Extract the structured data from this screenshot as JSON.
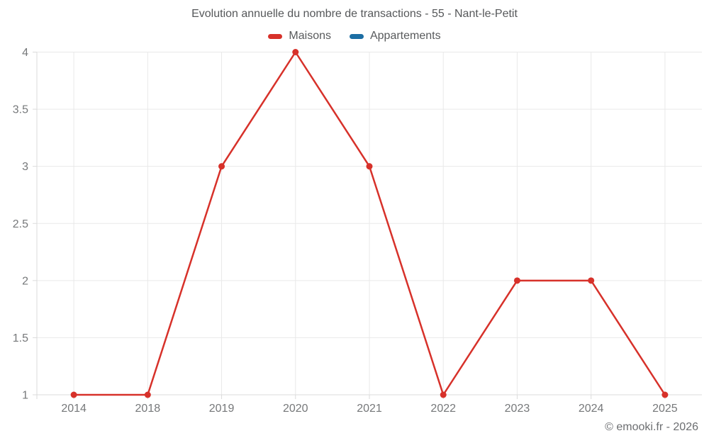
{
  "title": "Evolution annuelle du nombre de transactions - 55 - Nant-le-Petit",
  "legend": [
    {
      "label": "Maisons",
      "color": "#d7312a"
    },
    {
      "label": "Appartements",
      "color": "#1c6ea4"
    }
  ],
  "footer": "© emooki.fr - 2026",
  "colors": {
    "maisons": "#d7312a",
    "appartements": "#1c6ea4",
    "grid": "#e9e9e9",
    "axis": "#dbdbdb",
    "tick_label": "#76787a"
  },
  "chart_data": {
    "type": "line",
    "title": "Evolution annuelle du nombre de transactions - 55 - Nant-le-Petit",
    "categories": [
      "2014",
      "2018",
      "2019",
      "2020",
      "2021",
      "2022",
      "2023",
      "2024",
      "2025"
    ],
    "series": [
      {
        "name": "Maisons",
        "color": "#d7312a",
        "values": [
          1,
          1,
          3,
          4,
          3,
          1,
          2,
          2,
          1
        ]
      },
      {
        "name": "Appartements",
        "color": "#1c6ea4",
        "values": [
          null,
          null,
          null,
          null,
          null,
          null,
          null,
          null,
          null
        ]
      }
    ],
    "xlabel": "",
    "ylabel": "",
    "ylim": [
      1,
      4
    ],
    "yticks": [
      1,
      1.5,
      2,
      2.5,
      3,
      3.5,
      4
    ],
    "grid": true,
    "legend_position": "top"
  }
}
